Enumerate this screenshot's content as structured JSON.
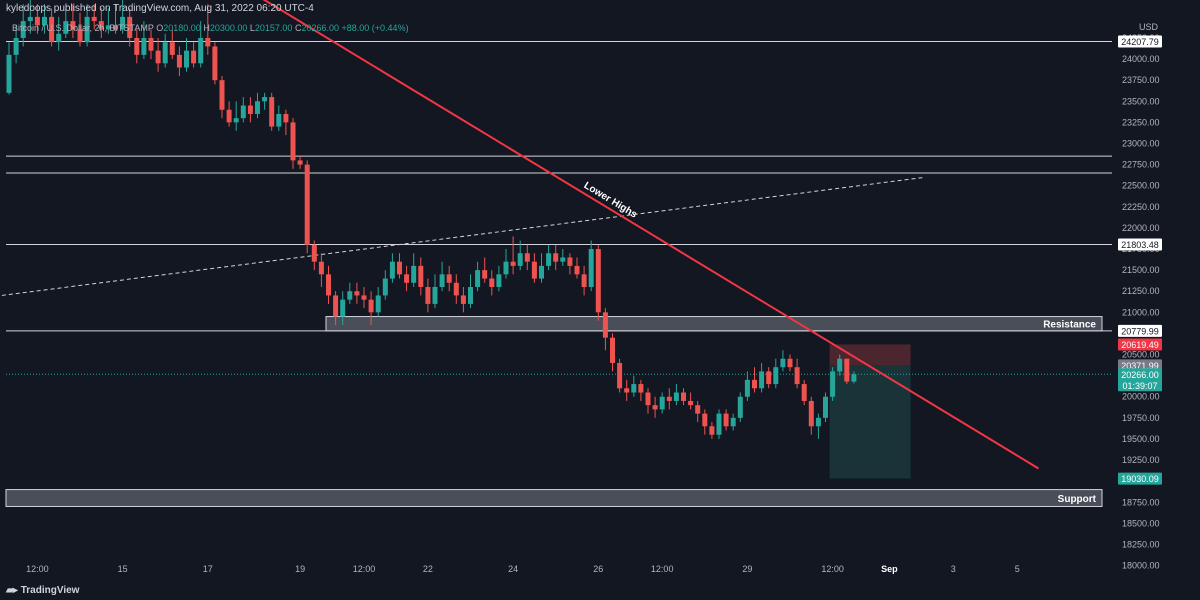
{
  "header": {
    "publisher_line": "kyledoops published on TradingView.com, Aug 31, 2022 06:20 UTC-4",
    "symbol": "Bitcoin / U.S. Dollar, 2h, BITSTAMP",
    "open_label": "O",
    "open": "20180.00",
    "high_label": "H",
    "high": "20300.00",
    "low_label": "L",
    "low": "20157.00",
    "close_label": "C",
    "close": "20266.00",
    "change": "+88.00 (+0.44%)"
  },
  "currency": "USD",
  "brand": "TradingView",
  "colors": {
    "background": "#131722",
    "up": "#26a69a",
    "down": "#ef5350",
    "trendline": "#f23645",
    "level_line": "#d1d4dc",
    "zone": "#787b86",
    "target_zone": "#1f4b4b",
    "stop_zone": "#5b2a33"
  },
  "chart_data": {
    "type": "candlestick",
    "title": "Bitcoin / U.S. Dollar, 2h, BITSTAMP",
    "ylim": [
      17900,
      24700
    ],
    "y_ticks": [
      18000,
      18250,
      18500,
      18750,
      19000,
      19250,
      19500,
      19750,
      20000,
      20250,
      20500,
      20750,
      21000,
      21250,
      21500,
      21750,
      22000,
      22250,
      22500,
      22750,
      23000,
      23250,
      23500,
      23750,
      24000,
      24250
    ],
    "x_ticks": [
      "12:00",
      "15",
      "17",
      "19",
      "12:00",
      "22",
      "24",
      "26",
      "12:00",
      "29",
      "12:00",
      "Sep",
      "3",
      "5"
    ],
    "x_tick_index": [
      4,
      16,
      28,
      41,
      50,
      59,
      71,
      83,
      92,
      104,
      116,
      124,
      133,
      142
    ],
    "candles": [
      [
        23600,
        24050,
        24200,
        23580
      ],
      [
        24050,
        24250,
        24400,
        23950
      ],
      [
        24250,
        24450,
        24650,
        24150
      ],
      [
        24450,
        24500,
        24700,
        24300
      ],
      [
        24500,
        24400,
        24650,
        24300
      ],
      [
        24400,
        24500,
        24650,
        24300
      ],
      [
        24500,
        24200,
        24600,
        24150
      ],
      [
        24200,
        24300,
        24500,
        24100
      ],
      [
        24300,
        24450,
        24600,
        24250
      ],
      [
        24450,
        24350,
        24650,
        24250
      ],
      [
        24350,
        24200,
        24550,
        24150
      ],
      [
        24200,
        24500,
        24650,
        24150
      ],
      [
        24500,
        24450,
        24650,
        24350
      ],
      [
        24450,
        24350,
        24600,
        24250
      ],
      [
        24350,
        24400,
        24600,
        24300
      ],
      [
        24400,
        24350,
        24650,
        24300
      ],
      [
        24350,
        24500,
        24700,
        24300
      ],
      [
        24500,
        24250,
        24600,
        24150
      ],
      [
        24250,
        24050,
        24350,
        23950
      ],
      [
        24050,
        24250,
        24450,
        24000
      ],
      [
        24250,
        24100,
        24350,
        24000
      ],
      [
        24100,
        23950,
        24250,
        23850
      ],
      [
        23950,
        24200,
        24300,
        23900
      ],
      [
        24200,
        24050,
        24350,
        24000
      ],
      [
        24050,
        23900,
        24150,
        23800
      ],
      [
        23900,
        24100,
        24250,
        23850
      ],
      [
        24100,
        23950,
        24200,
        23900
      ],
      [
        23950,
        24250,
        24450,
        23900
      ],
      [
        24250,
        24150,
        24650,
        24050
      ],
      [
        24150,
        23750,
        24200,
        23700
      ],
      [
        23750,
        23400,
        23800,
        23300
      ],
      [
        23400,
        23250,
        23500,
        23200
      ],
      [
        23250,
        23300,
        23500,
        23150
      ],
      [
        23300,
        23450,
        23550,
        23250
      ],
      [
        23450,
        23350,
        23550,
        23250
      ],
      [
        23350,
        23500,
        23600,
        23300
      ],
      [
        23500,
        23550,
        23600,
        23400
      ],
      [
        23550,
        23200,
        23600,
        23150
      ],
      [
        23200,
        23350,
        23450,
        23150
      ],
      [
        23350,
        23250,
        23400,
        23100
      ],
      [
        23250,
        22800,
        23300,
        22700
      ],
      [
        22800,
        22750,
        22850,
        22700
      ],
      [
        22750,
        21800,
        22800,
        21700
      ],
      [
        21800,
        21600,
        21850,
        21500
      ],
      [
        21600,
        21450,
        21700,
        21300
      ],
      [
        21450,
        21200,
        21550,
        21100
      ],
      [
        21200,
        20950,
        21250,
        20850
      ],
      [
        20950,
        21150,
        21250,
        20850
      ],
      [
        21150,
        21250,
        21350,
        21100
      ],
      [
        21250,
        21200,
        21350,
        21100
      ],
      [
        21200,
        21150,
        21300,
        21050
      ],
      [
        21150,
        21000,
        21250,
        20850
      ],
      [
        21000,
        21200,
        21300,
        20950
      ],
      [
        21200,
        21400,
        21500,
        21150
      ],
      [
        21400,
        21600,
        21700,
        21350
      ],
      [
        21600,
        21450,
        21700,
        21400
      ],
      [
        21450,
        21350,
        21550,
        21250
      ],
      [
        21350,
        21550,
        21700,
        21300
      ],
      [
        21550,
        21300,
        21650,
        21200
      ],
      [
        21300,
        21100,
        21400,
        21000
      ],
      [
        21100,
        21300,
        21450,
        21050
      ],
      [
        21300,
        21450,
        21600,
        21250
      ],
      [
        21450,
        21350,
        21550,
        21250
      ],
      [
        21350,
        21200,
        21450,
        21100
      ],
      [
        21200,
        21100,
        21300,
        21000
      ],
      [
        21100,
        21300,
        21450,
        21050
      ],
      [
        21300,
        21500,
        21600,
        21250
      ],
      [
        21500,
        21400,
        21650,
        21350
      ],
      [
        21400,
        21300,
        21500,
        21200
      ],
      [
        21300,
        21450,
        21550,
        21250
      ],
      [
        21450,
        21600,
        21750,
        21400
      ],
      [
        21600,
        21550,
        21900,
        21450
      ],
      [
        21550,
        21700,
        21850,
        21500
      ],
      [
        21700,
        21600,
        21800,
        21500
      ],
      [
        21600,
        21400,
        21700,
        21350
      ],
      [
        21400,
        21550,
        21700,
        21350
      ],
      [
        21550,
        21700,
        21800,
        21500
      ],
      [
        21700,
        21600,
        21800,
        21500
      ],
      [
        21600,
        21650,
        21750,
        21550
      ],
      [
        21650,
        21550,
        21700,
        21450
      ],
      [
        21550,
        21450,
        21650,
        21400
      ],
      [
        21450,
        21300,
        21550,
        21200
      ],
      [
        21300,
        21750,
        21850,
        21250
      ],
      [
        21750,
        21000,
        21800,
        20900
      ],
      [
        21000,
        20700,
        21050,
        20550
      ],
      [
        20700,
        20400,
        20750,
        20300
      ],
      [
        20400,
        20100,
        20450,
        20050
      ],
      [
        20100,
        20050,
        20200,
        19950
      ],
      [
        20050,
        20150,
        20250,
        20000
      ],
      [
        20150,
        20050,
        20200,
        19950
      ],
      [
        20050,
        19900,
        20100,
        19800
      ],
      [
        19900,
        19850,
        20000,
        19750
      ],
      [
        19850,
        20000,
        20050,
        19800
      ],
      [
        20000,
        19950,
        20100,
        19850
      ],
      [
        19950,
        20050,
        20150,
        19900
      ],
      [
        20050,
        19950,
        20100,
        19900
      ],
      [
        19950,
        19900,
        20050,
        19850
      ],
      [
        19900,
        19800,
        19950,
        19700
      ],
      [
        19800,
        19650,
        19850,
        19550
      ],
      [
        19650,
        19550,
        19700,
        19500
      ],
      [
        19550,
        19800,
        19850,
        19500
      ],
      [
        19800,
        19650,
        19850,
        19600
      ],
      [
        19650,
        19750,
        19800,
        19600
      ],
      [
        19750,
        20000,
        20050,
        19700
      ],
      [
        20000,
        20200,
        20300,
        19950
      ],
      [
        20200,
        20100,
        20350,
        20050
      ],
      [
        20100,
        20300,
        20400,
        20050
      ],
      [
        20300,
        20150,
        20350,
        20100
      ],
      [
        20150,
        20350,
        20450,
        20100
      ],
      [
        20350,
        20450,
        20550,
        20300
      ],
      [
        20450,
        20350,
        20500,
        20300
      ],
      [
        20350,
        20150,
        20450,
        20100
      ],
      [
        20150,
        19950,
        20200,
        19900
      ],
      [
        19950,
        19650,
        20000,
        19550
      ],
      [
        19650,
        19750,
        19800,
        19500
      ],
      [
        19750,
        20000,
        20050,
        19700
      ],
      [
        20000,
        20300,
        20350,
        19950
      ],
      [
        20300,
        20450,
        20500,
        20250
      ],
      [
        20450,
        20180,
        20450,
        20150
      ],
      [
        20180,
        20266,
        20300,
        20157
      ]
    ],
    "horizontal_levels": [
      24207.79,
      22850,
      22650,
      21803.48,
      20779.99
    ],
    "price_labels": {
      "level_top": "24207.79",
      "level_mid": "21803.48",
      "level_resistance": "20779.99",
      "stop": "20619.49",
      "entry": "20371.99",
      "current": "20266.00",
      "countdown": "01:39:07",
      "target": "19030.09"
    },
    "zones": [
      {
        "label": "Resistance",
        "from": 20779.99,
        "to": 20950
      },
      {
        "label": "Support",
        "from": 18700,
        "to": 18900
      }
    ],
    "annotations": [
      {
        "text": "Lower Highs"
      }
    ],
    "trendline": {
      "from": [
        35,
        24750
      ],
      "to": [
        145,
        19150
      ],
      "style": "solid"
    },
    "dashed_trendline": {
      "from": [
        -1,
        21200
      ],
      "to": [
        129,
        22600
      ],
      "style": "dashed"
    },
    "position": {
      "entry": 20371.99,
      "stop": 20619.49,
      "target": 19030.09,
      "from_index": 116,
      "to_index": 126
    }
  }
}
